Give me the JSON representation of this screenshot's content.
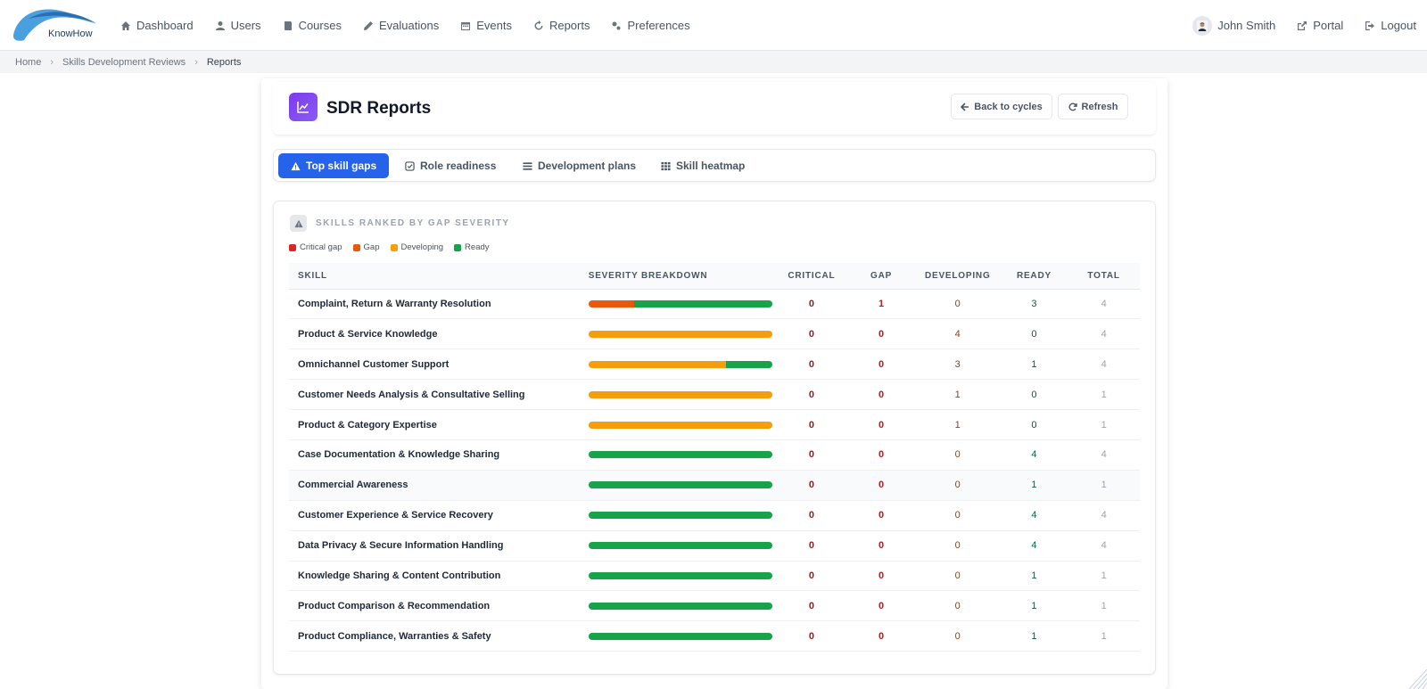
{
  "app": {
    "logo_text": "KnowHow"
  },
  "nav": {
    "items": [
      {
        "label": "Dashboard",
        "icon": "home-icon"
      },
      {
        "label": "Users",
        "icon": "user-icon"
      },
      {
        "label": "Courses",
        "icon": "book-icon"
      },
      {
        "label": "Evaluations",
        "icon": "pencil-icon"
      },
      {
        "label": "Events",
        "icon": "calendar-icon"
      },
      {
        "label": "Reports",
        "icon": "refresh-icon"
      },
      {
        "label": "Preferences",
        "icon": "gears-icon"
      }
    ],
    "user_name": "John Smith",
    "portal_label": "Portal",
    "logout_label": "Logout"
  },
  "breadcrumb": {
    "items": [
      "Home",
      "Skills Development Reviews",
      "Reports"
    ],
    "separator": "›"
  },
  "header": {
    "title": "SDR Reports",
    "back_label": "Back to cycles",
    "refresh_label": "Refresh"
  },
  "tabs": [
    {
      "label": "Top skill gaps",
      "icon": "warning-icon",
      "active": true
    },
    {
      "label": "Role readiness",
      "icon": "checkbox-icon",
      "active": false
    },
    {
      "label": "Development plans",
      "icon": "list-icon",
      "active": false
    },
    {
      "label": "Skill heatmap",
      "icon": "grid-icon",
      "active": false
    }
  ],
  "section": {
    "title": "SKILLS RANKED BY GAP SEVERITY",
    "legend": [
      {
        "label": "Critical gap",
        "color": "#dc2626"
      },
      {
        "label": "Gap",
        "color": "#ea580c"
      },
      {
        "label": "Developing",
        "color": "#f59e0b"
      },
      {
        "label": "Ready",
        "color": "#16a34a"
      }
    ]
  },
  "table": {
    "headers": [
      "SKILL",
      "SEVERITY BREAKDOWN",
      "CRITICAL",
      "GAP",
      "DEVELOPING",
      "READY",
      "TOTAL"
    ],
    "rows": [
      {
        "skill": "Complaint, Return & Warranty Resolution",
        "critical": "0",
        "gap": "1",
        "developing": "0",
        "ready": "3",
        "total": "4"
      },
      {
        "skill": "Product & Service Knowledge",
        "critical": "0",
        "gap": "0",
        "developing": "4",
        "ready": "0",
        "total": "4"
      },
      {
        "skill": "Omnichannel Customer Support",
        "critical": "0",
        "gap": "0",
        "developing": "3",
        "ready": "1",
        "total": "4"
      },
      {
        "skill": "Customer Needs Analysis & Consultative Selling",
        "critical": "0",
        "gap": "0",
        "developing": "1",
        "ready": "0",
        "total": "1"
      },
      {
        "skill": "Product & Category Expertise",
        "critical": "0",
        "gap": "0",
        "developing": "1",
        "ready": "0",
        "total": "1"
      },
      {
        "skill": "Case Documentation & Knowledge Sharing",
        "critical": "0",
        "gap": "0",
        "developing": "0",
        "ready": "4",
        "total": "4"
      },
      {
        "skill": "Commercial Awareness",
        "critical": "0",
        "gap": "0",
        "developing": "0",
        "ready": "1",
        "total": "1"
      },
      {
        "skill": "Customer Experience & Service Recovery",
        "critical": "0",
        "gap": "0",
        "developing": "0",
        "ready": "4",
        "total": "4"
      },
      {
        "skill": "Data Privacy & Secure Information Handling",
        "critical": "0",
        "gap": "0",
        "developing": "0",
        "ready": "4",
        "total": "4"
      },
      {
        "skill": "Knowledge Sharing & Content Contribution",
        "critical": "0",
        "gap": "0",
        "developing": "0",
        "ready": "1",
        "total": "1"
      },
      {
        "skill": "Product Comparison & Recommendation",
        "critical": "0",
        "gap": "0",
        "developing": "0",
        "ready": "1",
        "total": "1"
      },
      {
        "skill": "Product Compliance, Warranties & Safety",
        "critical": "0",
        "gap": "0",
        "developing": "0",
        "ready": "1",
        "total": "1"
      }
    ]
  }
}
